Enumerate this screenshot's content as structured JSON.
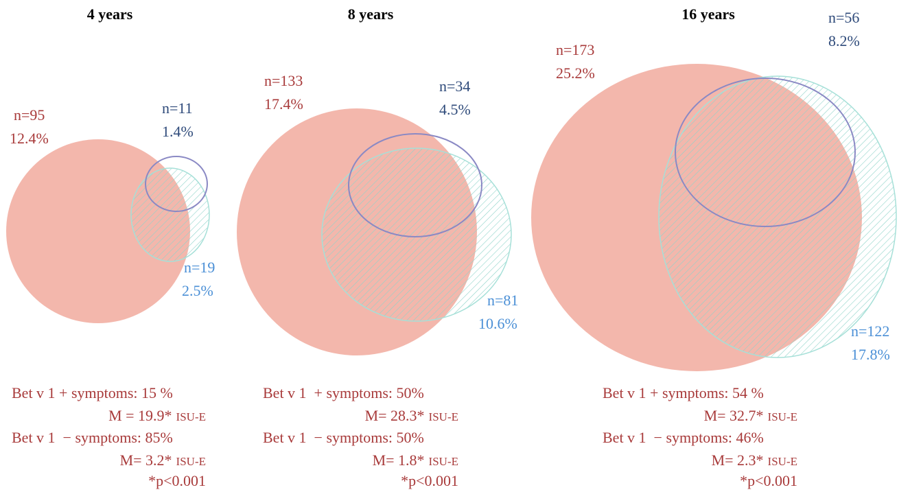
{
  "panels": [
    {
      "title": "4 years",
      "sets": [
        {
          "n": "n=95",
          "pct": "12.4%"
        },
        {
          "n": "n=11",
          "pct": "1.4%"
        },
        {
          "n": "n=19",
          "pct": "2.5%"
        }
      ],
      "notes": [
        {
          "text": "Bet v 1 + symptoms: 15 %"
        },
        {
          "text": "M = 19.9*",
          "unit": "ISU-E"
        },
        {
          "text": "Bet v 1  − symptoms: 85%"
        },
        {
          "text": "M= 3.2*",
          "unit": "ISU-E"
        },
        {
          "text": "*p<0.001"
        }
      ]
    },
    {
      "title": "8 years",
      "sets": [
        {
          "n": "n=133",
          "pct": "17.4%"
        },
        {
          "n": "n=34",
          "pct": "4.5%"
        },
        {
          "n": "n=81",
          "pct": "10.6%"
        }
      ],
      "notes": [
        {
          "text": "Bet v 1  + symptoms: 50%"
        },
        {
          "text": "M= 28.3*",
          "unit": "ISU-E"
        },
        {
          "text": "Bet v 1  − symptoms: 50%"
        },
        {
          "text": "M= 1.8*",
          "unit": "ISU-E"
        },
        {
          "text": "*p<0.001"
        }
      ]
    },
    {
      "title": "16 years",
      "sets": [
        {
          "n": "n=173",
          "pct": "25.2%"
        },
        {
          "n": "n=56",
          "pct": "8.2%"
        },
        {
          "n": "n=122",
          "pct": "17.8%"
        }
      ],
      "notes": [
        {
          "text": "Bet v 1 + symptoms: 54 %"
        },
        {
          "text": "M= 32.7*",
          "unit": "ISU-E"
        },
        {
          "text": "Bet v 1  − symptoms: 46%"
        },
        {
          "text": "M= 2.3*",
          "unit": "ISU-E"
        },
        {
          "text": "*p<0.001"
        }
      ]
    }
  ]
}
